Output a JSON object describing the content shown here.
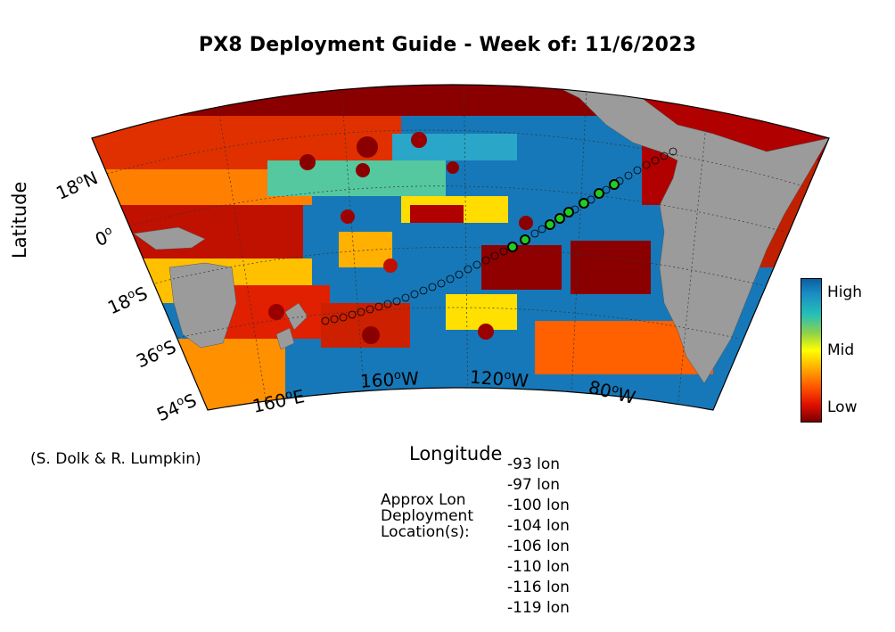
{
  "title": "PX8 Deployment Guide - Week of: 11/6/2023",
  "axes": {
    "xlabel": "Longitude",
    "ylabel": "Latitude",
    "lat_ticks": [
      {
        "deg": "18",
        "dir": "N"
      },
      {
        "deg": "0",
        "dir": ""
      },
      {
        "deg": "18",
        "dir": "S"
      },
      {
        "deg": "36",
        "dir": "S"
      },
      {
        "deg": "54",
        "dir": "S"
      }
    ],
    "lon_ticks": [
      {
        "deg": "160",
        "dir": "E"
      },
      {
        "deg": "160",
        "dir": "W"
      },
      {
        "deg": "120",
        "dir": "W"
      },
      {
        "deg": "80",
        "dir": "W"
      }
    ]
  },
  "colorbar": {
    "high": "High",
    "mid": "Mid",
    "low": "Low"
  },
  "credit": "(S. Dolk & R. Lumpkin)",
  "approx_label": [
    "Approx Lon",
    "Deployment",
    "Location(s):"
  ],
  "deployment_lons": [
    "-93 lon",
    "-97 lon",
    "-100 lon",
    "-104 lon",
    "-106 lon",
    "-110 lon",
    "-116 lon",
    "-119 lon"
  ],
  "colors": {
    "land": "#9b9b9b",
    "high": "#0b66aa",
    "mid": "#ffff00",
    "low": "#7a0000",
    "marker": "#22cc22"
  }
}
